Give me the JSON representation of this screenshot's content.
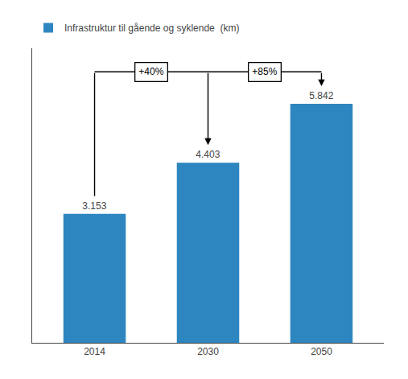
{
  "chart_data": {
    "type": "bar",
    "categories": [
      "2014",
      "2030",
      "2050"
    ],
    "series": [
      {
        "name": "Infrastruktur til gående og syklende  (km)",
        "color": "#2E86C1",
        "values": [
          3153,
          4403,
          5842
        ],
        "value_labels": [
          "3.153",
          "4.403",
          "5.842"
        ]
      }
    ],
    "data_labels": true,
    "ylim": [
      0,
      7200
    ],
    "yticks": [],
    "tick_labels": "x",
    "grid": false,
    "legend": "upper left",
    "annotations": [
      "+40%",
      "+85%"
    ]
  }
}
